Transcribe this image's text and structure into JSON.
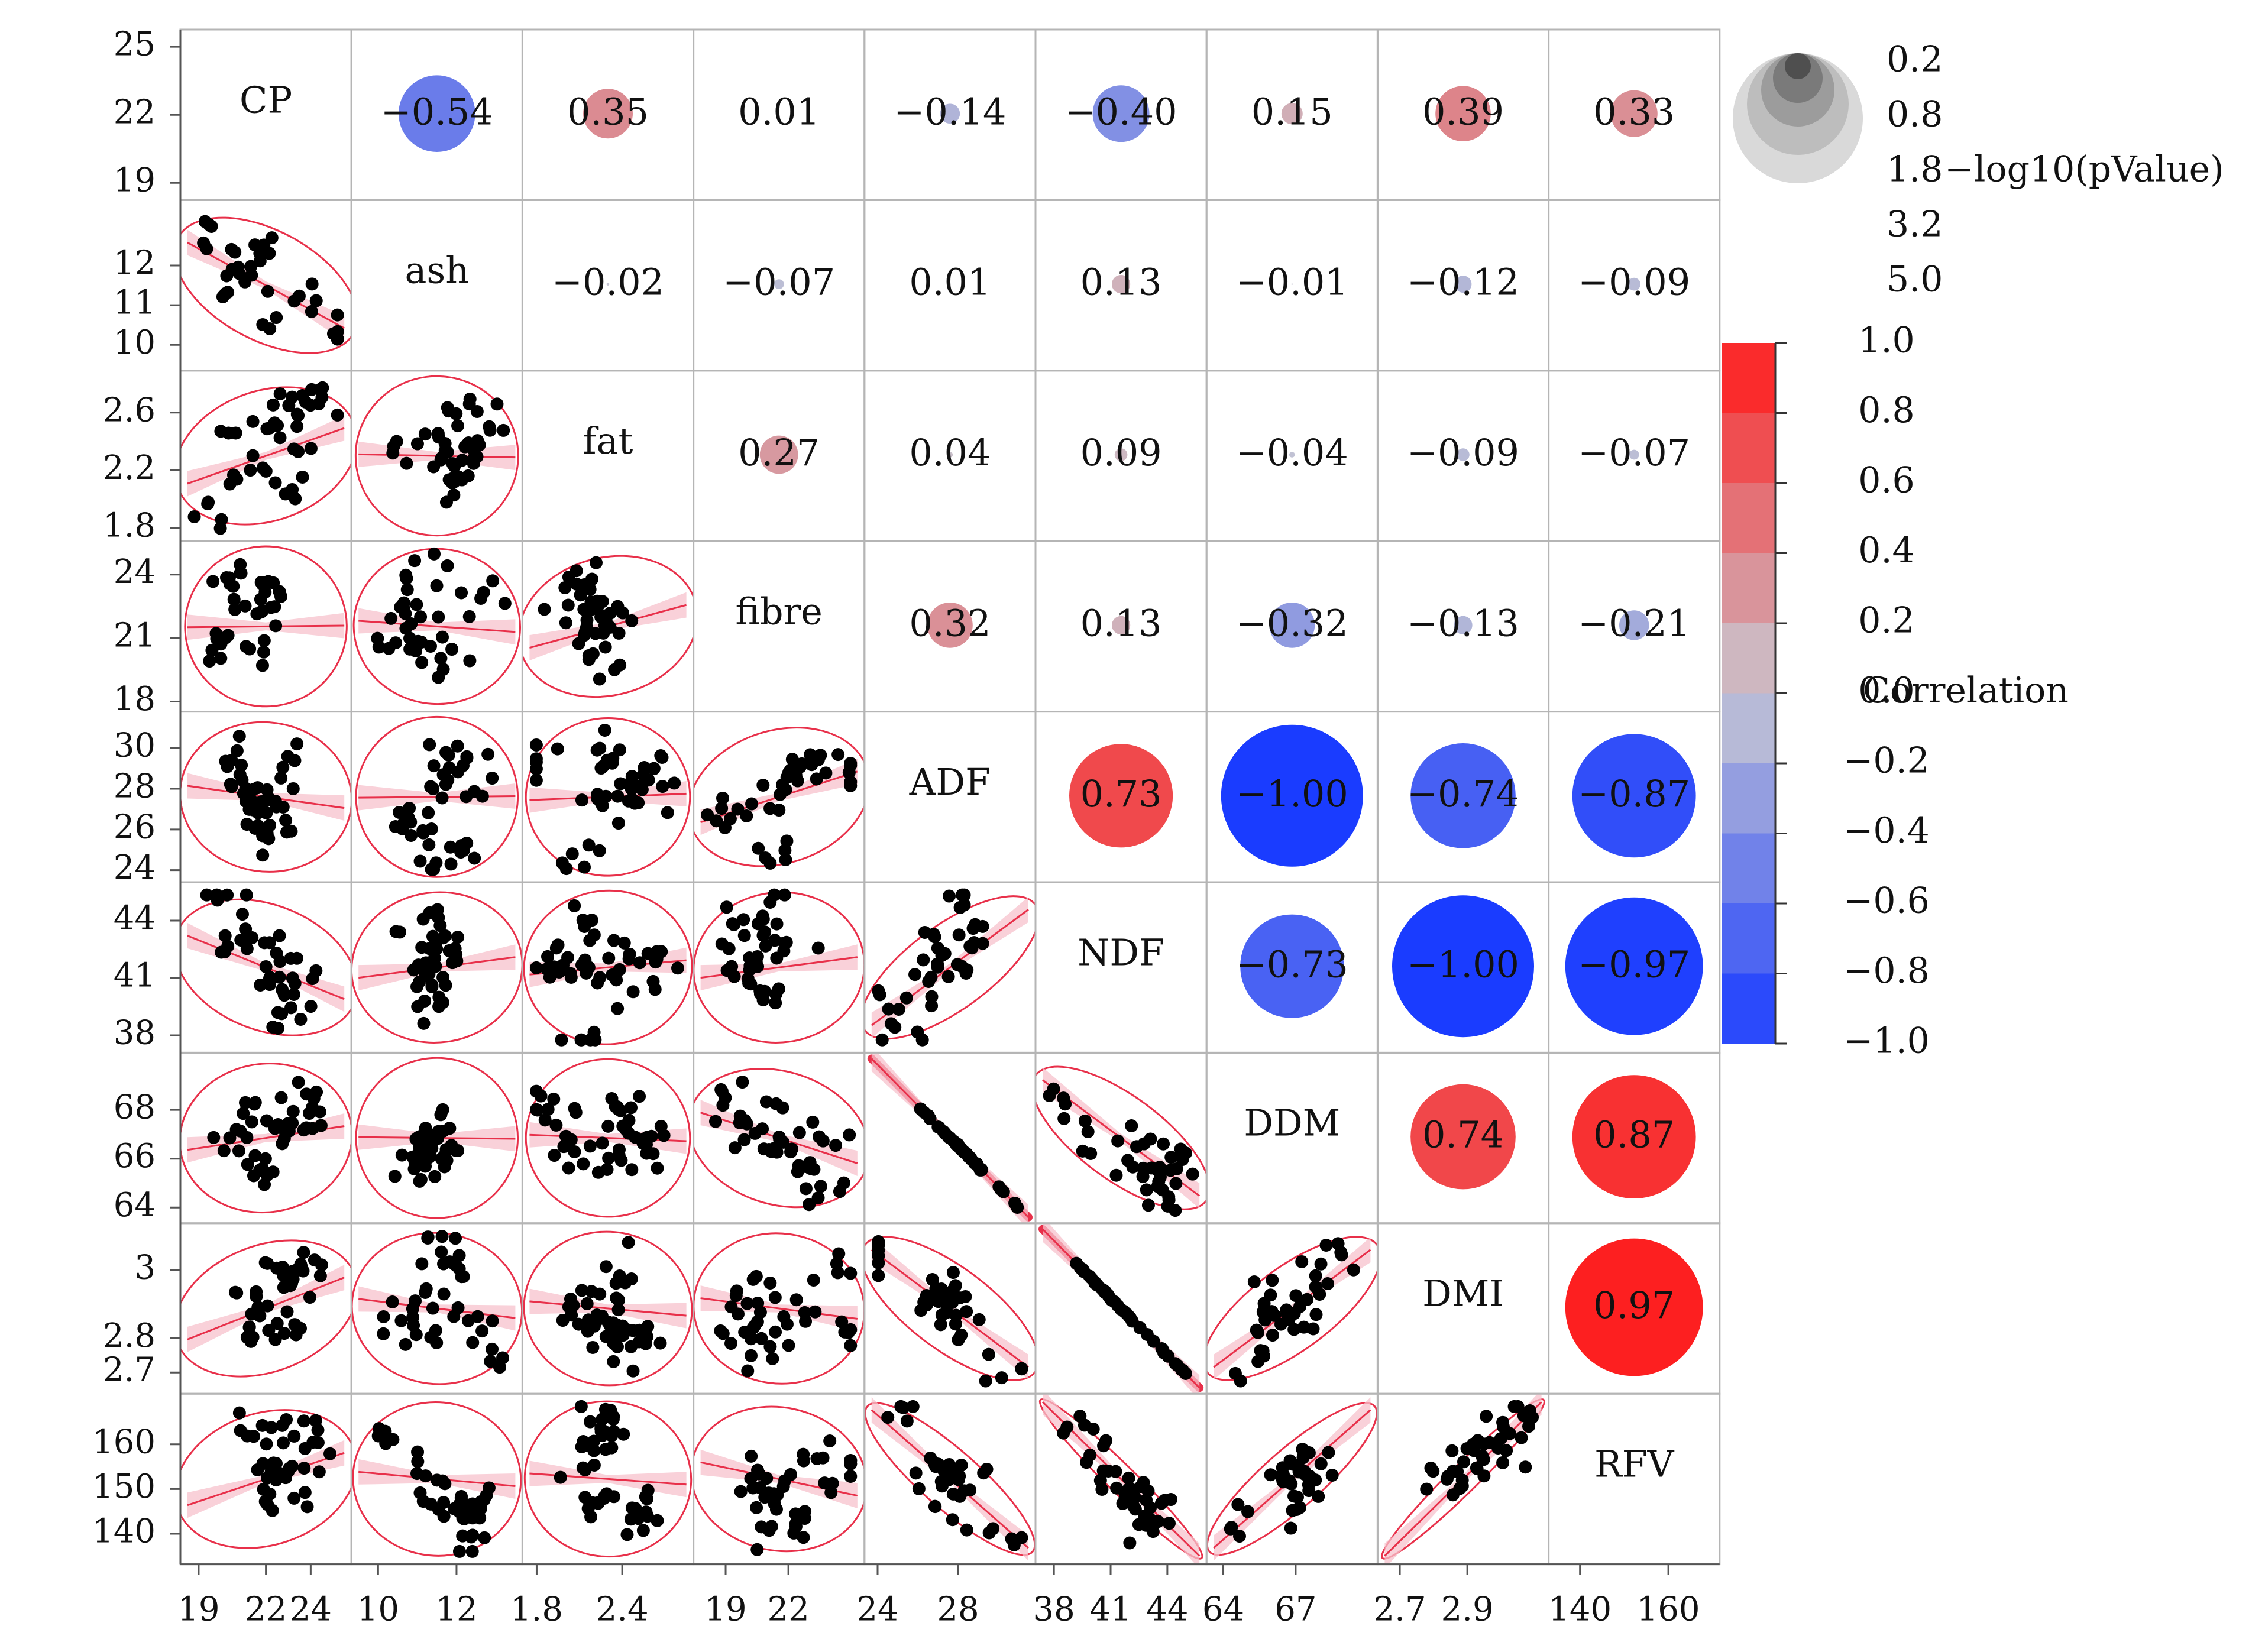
{
  "chart_data": {
    "type": "scatter",
    "variables": [
      "CP",
      "ash",
      "fat",
      "fibre",
      "ADF",
      "NDF",
      "DDM",
      "DMI",
      "RFV"
    ],
    "axis_ranges": [
      [
        18.5,
        25.5
      ],
      [
        9.5,
        13.5
      ],
      [
        1.75,
        2.85
      ],
      [
        17.8,
        25.3
      ],
      [
        23.7,
        31.5
      ],
      [
        37.4,
        45.7
      ],
      [
        63.6,
        70.1
      ],
      [
        2.655,
        3.12
      ],
      [
        134.5,
        170
      ]
    ],
    "y_ticks": [
      [
        "25",
        "22",
        "19"
      ],
      [
        "12",
        "11",
        "10"
      ],
      [
        "2.6",
        "2.2",
        "1.8"
      ],
      [
        "24",
        "21",
        "18"
      ],
      [
        "30",
        "28",
        "26",
        "24"
      ],
      [
        "44",
        "41",
        "38"
      ],
      [
        "68",
        "66",
        "64"
      ],
      [
        "3",
        "2.8",
        "2.7"
      ],
      [
        "160",
        "150",
        "140"
      ]
    ],
    "x_ticks": [
      [
        "19",
        "22",
        "24"
      ],
      [
        "10",
        "12"
      ],
      [
        "1.8",
        "2.4"
      ],
      [
        "19",
        "22"
      ],
      [
        "24",
        "28"
      ],
      [
        "38",
        "41",
        "44"
      ],
      [
        "64",
        "67"
      ],
      [
        "2.7",
        "2.9"
      ],
      [
        "140",
        "160"
      ]
    ],
    "correlations": [
      [
        null,
        -0.54,
        0.35,
        0.01,
        -0.14,
        -0.4,
        0.15,
        0.39,
        0.33
      ],
      [
        null,
        null,
        -0.02,
        -0.07,
        0.01,
        0.13,
        -0.01,
        -0.12,
        -0.09
      ],
      [
        null,
        null,
        null,
        0.27,
        0.04,
        0.09,
        -0.04,
        -0.09,
        -0.07
      ],
      [
        null,
        null,
        null,
        null,
        0.32,
        0.13,
        -0.32,
        -0.13,
        -0.21
      ],
      [
        null,
        null,
        null,
        null,
        null,
        0.73,
        -1.0,
        -0.74,
        -0.87
      ],
      [
        null,
        null,
        null,
        null,
        null,
        null,
        -0.73,
        -1.0,
        -0.97
      ],
      [
        null,
        null,
        null,
        null,
        null,
        null,
        null,
        0.74,
        0.87
      ],
      [
        null,
        null,
        null,
        null,
        null,
        null,
        null,
        null,
        0.97
      ],
      [
        null,
        null,
        null,
        null,
        null,
        null,
        null,
        null,
        null
      ]
    ],
    "correlation_text": [
      [
        null,
        "−0.54",
        "0.35",
        "0.01",
        "−0.14",
        "−0.40",
        "0.15",
        "0.39",
        "0.33"
      ],
      [
        null,
        null,
        "−0.02",
        "−0.07",
        "0.01",
        "0.13",
        "−0.01",
        "−0.12",
        "−0.09"
      ],
      [
        null,
        null,
        null,
        "0.27",
        "0.04",
        "0.09",
        "−0.04",
        "−0.09",
        "−0.07"
      ],
      [
        null,
        null,
        null,
        null,
        "0.32",
        "0.13",
        "−0.32",
        "−0.13",
        "−0.21"
      ],
      [
        null,
        null,
        null,
        null,
        null,
        "0.73",
        "−1.00",
        "−0.74",
        "−0.87"
      ],
      [
        null,
        null,
        null,
        null,
        null,
        null,
        "−0.73",
        "−1.00",
        "−0.97"
      ],
      [
        null,
        null,
        null,
        null,
        null,
        null,
        null,
        "0.74",
        "0.87"
      ],
      [
        null,
        null,
        null,
        null,
        null,
        null,
        null,
        null,
        "0.97"
      ],
      [
        null,
        null,
        null,
        null,
        null,
        null,
        null,
        null,
        null
      ]
    ],
    "scatter_cells": [
      {
        "x": "CP",
        "y": "ash",
        "points": 38
      },
      {
        "x": "CP",
        "y": "fat",
        "points": 45
      },
      {
        "x": "ash",
        "y": "fat",
        "points": 45
      },
      {
        "x": "CP",
        "y": "fibre",
        "points": 40
      },
      {
        "x": "ash",
        "y": "fibre",
        "points": 40
      },
      {
        "x": "fat",
        "y": "fibre",
        "points": 45
      },
      {
        "x": "CP",
        "y": "ADF",
        "points": 45
      },
      {
        "x": "ash",
        "y": "ADF",
        "points": 45
      },
      {
        "x": "fat",
        "y": "ADF",
        "points": 50
      },
      {
        "x": "fibre",
        "y": "ADF",
        "points": 45
      },
      {
        "x": "CP",
        "y": "NDF",
        "points": 42
      },
      {
        "x": "ash",
        "y": "NDF",
        "points": 42
      },
      {
        "x": "fat",
        "y": "NDF",
        "points": 50
      },
      {
        "x": "fibre",
        "y": "NDF",
        "points": 42
      },
      {
        "x": "ADF",
        "y": "NDF",
        "points": 42
      },
      {
        "x": "CP",
        "y": "DDM",
        "points": 45
      },
      {
        "x": "ash",
        "y": "DDM",
        "points": 45
      },
      {
        "x": "fat",
        "y": "DDM",
        "points": 50
      },
      {
        "x": "fibre",
        "y": "DDM",
        "points": 45
      },
      {
        "x": "ADF",
        "y": "DDM",
        "points": 45
      },
      {
        "x": "NDF",
        "y": "DDM",
        "points": 42
      },
      {
        "x": "CP",
        "y": "DMI",
        "points": 42
      },
      {
        "x": "ash",
        "y": "DMI",
        "points": 42
      },
      {
        "x": "fat",
        "y": "DMI",
        "points": 50
      },
      {
        "x": "fibre",
        "y": "DMI",
        "points": 42
      },
      {
        "x": "ADF",
        "y": "DMI",
        "points": 42
      },
      {
        "x": "NDF",
        "y": "DMI",
        "points": 42
      },
      {
        "x": "DDM",
        "y": "DMI",
        "points": 42
      },
      {
        "x": "CP",
        "y": "RFV",
        "points": 42
      },
      {
        "x": "ash",
        "y": "RFV",
        "points": 42
      },
      {
        "x": "fat",
        "y": "RFV",
        "points": 50
      },
      {
        "x": "fibre",
        "y": "RFV",
        "points": 42
      },
      {
        "x": "ADF",
        "y": "RFV",
        "points": 42
      },
      {
        "x": "NDF",
        "y": "RFV",
        "points": 42
      },
      {
        "x": "DDM",
        "y": "RFV",
        "points": 42
      },
      {
        "x": "DMI",
        "y": "RFV",
        "points": 42
      }
    ],
    "size_legend": {
      "title": "−log10(pValue)",
      "values": [
        "0.2",
        "0.8",
        "1.8",
        "3.2",
        "5.0"
      ]
    },
    "color_legend": {
      "title": "Correlation",
      "ticks": [
        "1.0",
        "0.8",
        "0.6",
        "0.4",
        "0.2",
        "0.0",
        "−0.2",
        "−0.4",
        "−0.6",
        "−0.8",
        "−1.0"
      ],
      "range": [
        -1.0,
        1.0
      ]
    },
    "colors": {
      "negative": "#1a3cff",
      "positive": "#ff1a1a",
      "neutral": "#c8c8d0",
      "points": "#000000",
      "ellipse": "#e8304a",
      "fit_line": "#e8304a",
      "confidence_band": "#f7c2cc"
    }
  }
}
